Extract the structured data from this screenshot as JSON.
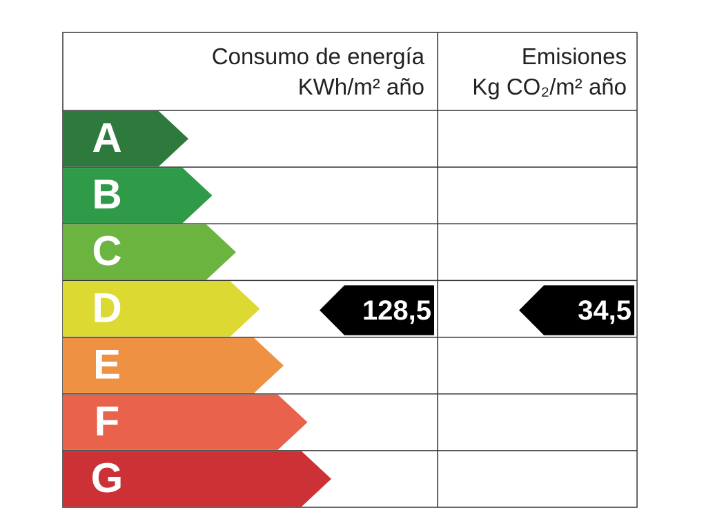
{
  "header": {
    "consumption_title": "Consumo de energía",
    "consumption_unit": "KWh/m² año",
    "emissions_title": "Emisiones",
    "emissions_unit": "Kg CO₂/m² año"
  },
  "classes": [
    {
      "letter": "A",
      "color": "#2e7a3c"
    },
    {
      "letter": "B",
      "color": "#2f9a47"
    },
    {
      "letter": "C",
      "color": "#6ab43f"
    },
    {
      "letter": "D",
      "color": "#dcd932"
    },
    {
      "letter": "E",
      "color": "#ef9143"
    },
    {
      "letter": "F",
      "color": "#e8624c"
    },
    {
      "letter": "G",
      "color": "#cb3135"
    }
  ],
  "consumption": {
    "rating": "D",
    "value": {
      "value": 128.5,
      "label": "128,5"
    }
  },
  "emissions": {
    "rating": "D",
    "value": {
      "value": 34.5,
      "label": "34,5"
    }
  }
}
